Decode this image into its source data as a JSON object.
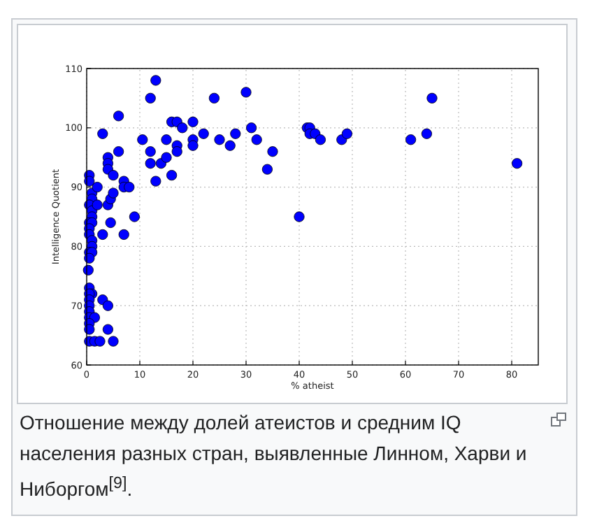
{
  "chart_data": {
    "type": "scatter",
    "xlabel": "% atheist",
    "ylabel": "Intelligence Quotient",
    "xlim": [
      0,
      85
    ],
    "ylim": [
      60,
      110
    ],
    "xticks": [
      0,
      10,
      20,
      30,
      40,
      50,
      60,
      70,
      80
    ],
    "yticks": [
      60,
      70,
      80,
      90,
      100,
      110
    ],
    "grid": true,
    "marker": "circle",
    "series": [
      {
        "color": "#0000ff",
        "x": [
          0.5,
          0.5,
          1,
          1,
          0.5,
          1,
          1,
          0.5,
          1,
          0.5,
          0.5,
          1,
          1,
          0.5,
          1,
          0.5,
          0.3,
          0.5,
          1,
          0.5,
          0.5,
          0.5,
          0.5,
          0.5,
          1.5,
          0.5,
          0.5,
          0.5,
          1.5,
          2.5,
          3,
          4,
          4,
          5,
          2,
          2,
          3,
          3,
          4,
          4,
          4,
          4,
          4.5,
          5,
          5,
          4.5,
          6,
          6,
          7,
          7,
          7,
          8,
          9,
          10.5,
          12,
          12,
          12,
          13,
          13,
          14,
          15,
          15,
          16,
          16,
          17,
          17,
          17,
          18,
          20,
          20,
          20,
          22,
          24,
          25,
          27,
          28,
          30,
          31,
          32,
          34,
          35,
          40,
          41.5,
          42,
          42,
          43,
          44,
          48,
          49,
          61,
          64,
          65,
          81
        ],
        "values": [
          92,
          91,
          89,
          88,
          87,
          86,
          85,
          84,
          84,
          83,
          82,
          81,
          80,
          79,
          79,
          78,
          76,
          73,
          72,
          72,
          71,
          70,
          69,
          68,
          68,
          67,
          66,
          64,
          64,
          64,
          71,
          70,
          66,
          64,
          90,
          87,
          82,
          99,
          95,
          94,
          93,
          87,
          88,
          89,
          92,
          84,
          96,
          102,
          91,
          90,
          82,
          90,
          85,
          98,
          96,
          94,
          105,
          108,
          91,
          94,
          98,
          95,
          92,
          101,
          101,
          97,
          96,
          100,
          101,
          98,
          97,
          99,
          105,
          98,
          97,
          99,
          106,
          100,
          98,
          93,
          96,
          85,
          100,
          100,
          99,
          99,
          98,
          98,
          99,
          98,
          99,
          105,
          94
        ]
      }
    ],
    "annotations": [
      "Отношение между долей атеистов и средним IQ населения разных стран, выявленные Линном, Харви и Ниборгом$^{[9]}$."
    ]
  }
}
